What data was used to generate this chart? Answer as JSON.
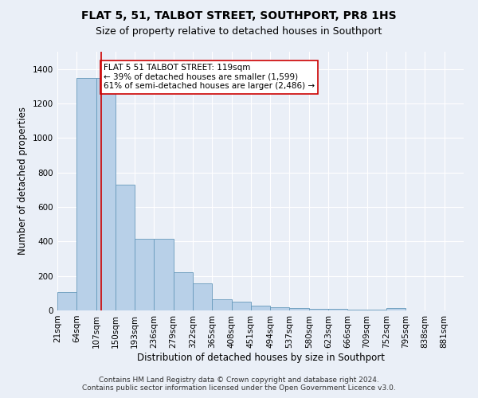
{
  "title": "FLAT 5, 51, TALBOT STREET, SOUTHPORT, PR8 1HS",
  "subtitle": "Size of property relative to detached houses in Southport",
  "xlabel": "Distribution of detached houses by size in Southport",
  "ylabel": "Number of detached properties",
  "footnote1": "Contains HM Land Registry data © Crown copyright and database right 2024.",
  "footnote2": "Contains public sector information licensed under the Open Government Licence v3.0.",
  "bin_edges": [
    21,
    64,
    107,
    150,
    193,
    236,
    279,
    322,
    365,
    408,
    451,
    494,
    537,
    580,
    623,
    666,
    709,
    752,
    795,
    838,
    881,
    924
  ],
  "bin_counts": [
    107,
    1350,
    1350,
    730,
    415,
    415,
    220,
    155,
    65,
    50,
    30,
    17,
    13,
    10,
    10,
    5,
    5,
    15,
    2,
    2,
    2
  ],
  "bar_color": "#b8d0e8",
  "bar_edge_color": "#6699bb",
  "property_size": 119,
  "vline_color": "#cc0000",
  "annotation_text": "FLAT 5 51 TALBOT STREET: 119sqm\n← 39% of detached houses are smaller (1,599)\n61% of semi-detached houses are larger (2,486) →",
  "annotation_box_color": "#ffffff",
  "annotation_box_edge": "#cc0000",
  "ylim": [
    0,
    1500
  ],
  "yticks": [
    0,
    200,
    400,
    600,
    800,
    1000,
    1200,
    1400
  ],
  "bg_color": "#eaeff7",
  "plot_bg_color": "#eaeff7",
  "grid_color": "#ffffff",
  "title_fontsize": 10,
  "subtitle_fontsize": 9,
  "axis_label_fontsize": 8.5,
  "tick_fontsize": 7.5,
  "annotation_fontsize": 7.5,
  "footnote_fontsize": 6.5
}
